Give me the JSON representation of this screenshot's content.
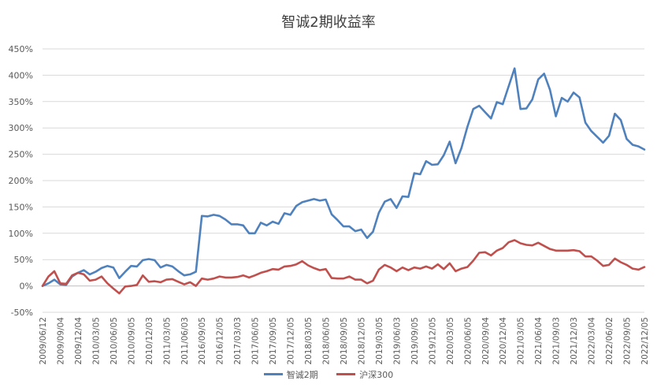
{
  "chart_data": {
    "type": "line",
    "title": "智诚2期收益率",
    "xlabel": "",
    "ylabel": "",
    "ylim": [
      -50,
      450
    ],
    "yticks": [
      -50,
      0,
      50,
      100,
      150,
      200,
      250,
      300,
      350,
      400,
      450
    ],
    "ytick_labels": [
      "-50%",
      "0%",
      "50%",
      "100%",
      "150%",
      "200%",
      "250%",
      "300%",
      "350%",
      "400%",
      "450%"
    ],
    "grid": true,
    "legend_position": "bottom",
    "xtick_labels": [
      "2009/06/12",
      "2009/09/04",
      "2009/12/04",
      "2010/03/05",
      "2010/06/05",
      "2010/09/05",
      "2010/12/03",
      "2011/03/05",
      "2011/06/03",
      "2016/09/05",
      "2016/12/05",
      "2017/03/03",
      "2017/06/05",
      "2017/09/05",
      "2017/12/05",
      "2018/03/05",
      "2018/06/05",
      "2018/09/05",
      "2018/12/05",
      "2019/03/05",
      "2019/06/03",
      "2019/09/05",
      "2019/12/05",
      "2020/03/05",
      "2020/06/05",
      "2020/09/04",
      "2020/12/04",
      "2021/03/05",
      "2021/06/04",
      "2021/09/03",
      "2021/12/03",
      "2022/03/04",
      "2022/06/02",
      "2022/09/05",
      "2022/12/05"
    ],
    "series": [
      {
        "name": "智诚2期",
        "color": "#4F81BD",
        "values": [
          0,
          5,
          12,
          3,
          2,
          18,
          25,
          30,
          22,
          27,
          34,
          38,
          35,
          15,
          27,
          38,
          37,
          49,
          51,
          49,
          35,
          40,
          37,
          28,
          20,
          22,
          27,
          133,
          132,
          135,
          133,
          126,
          117,
          117,
          115,
          100,
          100,
          120,
          115,
          122,
          118,
          138,
          135,
          152,
          159,
          162,
          165,
          162,
          164,
          136,
          125,
          113,
          113,
          104,
          107,
          91,
          103,
          139,
          160,
          165,
          148,
          170,
          169,
          214,
          212,
          237,
          230,
          231,
          248,
          274,
          233,
          262,
          302,
          336,
          342,
          330,
          318,
          349,
          345,
          379,
          413,
          336,
          337,
          354,
          392,
          403,
          372,
          322,
          357,
          350,
          367,
          358,
          310,
          294,
          283,
          272,
          285,
          327,
          315,
          279,
          268,
          265,
          259
        ]
      },
      {
        "name": "沪深300",
        "color": "#C0504D",
        "values": [
          0,
          18,
          28,
          5,
          4,
          20,
          25,
          22,
          10,
          12,
          18,
          5,
          -5,
          -14,
          -1,
          0,
          2,
          20,
          8,
          9,
          7,
          12,
          13,
          8,
          3,
          7,
          0,
          14,
          12,
          14,
          18,
          16,
          16,
          17,
          20,
          16,
          20,
          25,
          28,
          32,
          31,
          37,
          38,
          41,
          47,
          39,
          34,
          30,
          32,
          15,
          14,
          14,
          18,
          12,
          12,
          5,
          10,
          31,
          40,
          35,
          28,
          35,
          30,
          35,
          33,
          37,
          33,
          41,
          32,
          43,
          28,
          33,
          36,
          48,
          63,
          64,
          58,
          67,
          72,
          83,
          87,
          81,
          78,
          77,
          82,
          76,
          70,
          67,
          67,
          67,
          68,
          66,
          56,
          56,
          48,
          38,
          40,
          52,
          45,
          40,
          33,
          31,
          36
        ]
      }
    ]
  }
}
